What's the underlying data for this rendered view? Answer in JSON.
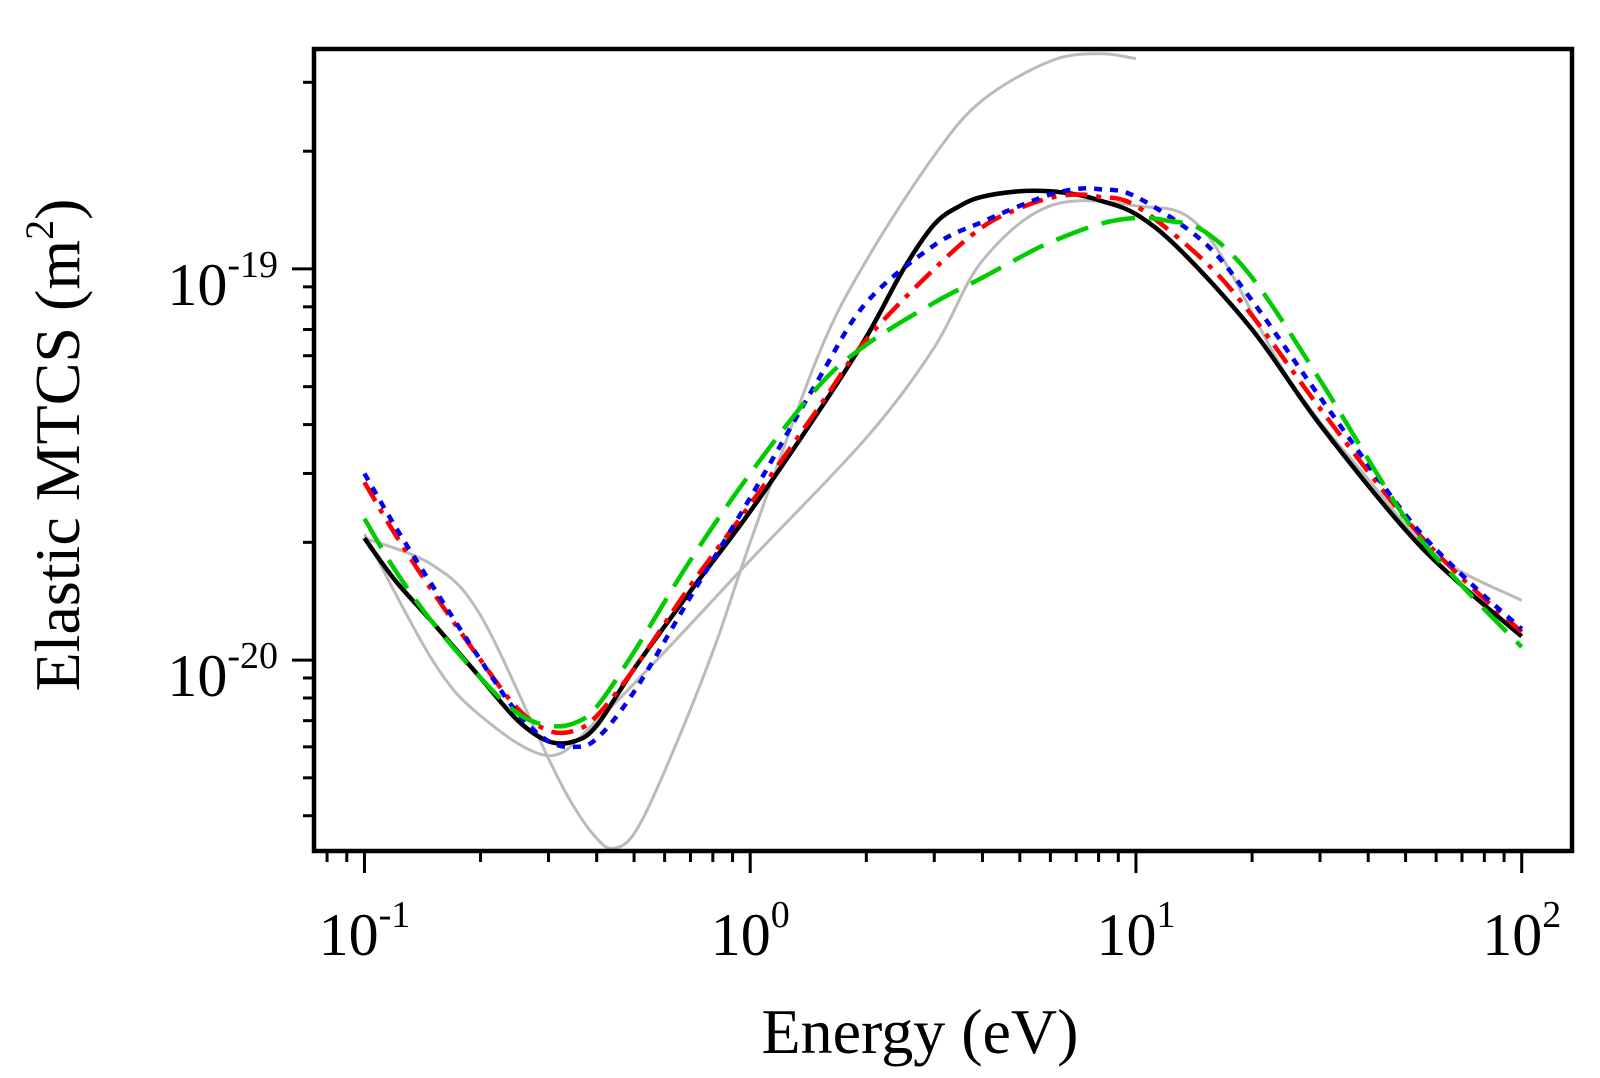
{
  "chart_data": {
    "type": "line",
    "title": "",
    "xlabel": "Energy (eV)",
    "ylabel_main": "Elastic MTCS (m",
    "ylabel_sup": "2",
    "ylabel_close": ")",
    "xscale": "log",
    "yscale": "log",
    "xlim": [
      0.074,
      135
    ],
    "ylim": [
      3.25e-21,
      3.65e-19
    ],
    "grid": false,
    "legend": "none",
    "x_ticks": [
      {
        "value": 0.1,
        "base": "10",
        "exp": "-1"
      },
      {
        "value": 1,
        "base": "10",
        "exp": "0"
      },
      {
        "value": 10,
        "base": "10",
        "exp": "1"
      },
      {
        "value": 100,
        "base": "10",
        "exp": "2"
      }
    ],
    "y_ticks": [
      {
        "value": 1e-20,
        "base": "10",
        "exp": "-20"
      },
      {
        "value": 1e-19,
        "base": "10",
        "exp": "-19"
      }
    ],
    "series": [
      {
        "color": "#bbbbbb",
        "dash": "solid",
        "width": 3,
        "x": [
          0.1,
          0.15,
          0.2,
          0.3,
          0.35,
          0.4,
          0.44,
          0.5,
          0.6,
          0.8,
          1,
          1.5,
          2,
          3,
          4,
          6,
          8,
          10
        ],
        "y": [
          2.05e-20,
          1.75e-20,
          1.3e-20,
          5.6e-21,
          4.2e-21,
          3.5e-21,
          3.3e-21,
          3.6e-21,
          5.2e-21,
          1.05e-20,
          2e-20,
          6e-20,
          1.05e-19,
          1.95e-19,
          2.7e-19,
          3.4e-19,
          3.55e-19,
          3.45e-19
        ]
      },
      {
        "color": "#bbbbbb",
        "dash": "solid",
        "width": 3,
        "x": [
          0.1,
          0.15,
          0.2,
          0.3,
          0.4,
          0.6,
          1,
          2,
          3,
          4,
          6,
          10,
          15,
          25,
          40,
          60,
          100
        ],
        "y": [
          2.1e-20,
          1e-20,
          7.2e-21,
          5.7e-21,
          7e-21,
          1.05e-20,
          1.8e-20,
          3.7e-20,
          6.3e-20,
          1.05e-19,
          1.45e-19,
          1.45e-19,
          1.25e-19,
          5.2e-20,
          2.9e-20,
          1.85e-20,
          1.42e-20
        ]
      },
      {
        "color": "#000000",
        "dash": "solid",
        "width": 4.5,
        "x": [
          0.1,
          0.12,
          0.15,
          0.2,
          0.25,
          0.3,
          0.35,
          0.4,
          0.5,
          0.7,
          1,
          1.5,
          2,
          2.5,
          3,
          3.5,
          4,
          5,
          6,
          7,
          8,
          10,
          13,
          20,
          30,
          50,
          70,
          100
        ],
        "y": [
          2.05e-20,
          1.6e-20,
          1.25e-20,
          9e-21,
          7e-21,
          6.2e-21,
          6.2e-21,
          6.8e-21,
          9.5e-21,
          1.5e-20,
          2.4e-20,
          4.3e-20,
          6.7e-20,
          1e-19,
          1.3e-19,
          1.45e-19,
          1.53e-19,
          1.58e-19,
          1.58e-19,
          1.55e-19,
          1.5e-19,
          1.38e-19,
          1.12e-19,
          7e-20,
          4e-20,
          2.15e-20,
          1.55e-20,
          1.15e-20
        ]
      },
      {
        "color": "#ff0000",
        "dash": "dashdot",
        "width": 4.5,
        "x": [
          0.1,
          0.12,
          0.15,
          0.2,
          0.25,
          0.3,
          0.35,
          0.4,
          0.5,
          0.7,
          1,
          1.5,
          2,
          3,
          4,
          5,
          6,
          7,
          8,
          10,
          15,
          20,
          30,
          50,
          70,
          100
        ],
        "y": [
          2.85e-20,
          2.1e-20,
          1.5e-20,
          1e-20,
          7.5e-21,
          6.6e-21,
          6.6e-21,
          7.2e-21,
          9.5e-21,
          1.55e-20,
          2.5e-20,
          4.4e-20,
          6.6e-20,
          1e-19,
          1.28e-19,
          1.43e-19,
          1.52e-19,
          1.55e-19,
          1.53e-19,
          1.45e-19,
          1.05e-19,
          7.6e-20,
          4.4e-20,
          2.3e-20,
          1.62e-20,
          1.18e-20
        ]
      },
      {
        "color": "#0000ee",
        "dash": "dotted",
        "width": 4.5,
        "x": [
          0.1,
          0.12,
          0.15,
          0.2,
          0.25,
          0.3,
          0.35,
          0.4,
          0.5,
          0.7,
          1,
          1.5,
          2,
          3,
          4,
          5,
          6,
          7,
          8,
          10,
          15,
          20,
          30,
          50,
          70,
          100
        ],
        "y": [
          3e-20,
          2.2e-20,
          1.55e-20,
          1e-20,
          7.3e-21,
          6.2e-21,
          6e-21,
          6.3e-21,
          8.3e-21,
          1.45e-20,
          2.6e-20,
          5.2e-20,
          8.2e-20,
          1.15e-19,
          1.32e-19,
          1.45e-19,
          1.55e-19,
          1.6e-19,
          1.6e-19,
          1.53e-19,
          1.17e-19,
          8.3e-20,
          4.7e-20,
          2.35e-20,
          1.65e-20,
          1.2e-20
        ]
      },
      {
        "color": "#00cc00",
        "dash": "dashed",
        "width": 4.5,
        "x": [
          0.1,
          0.12,
          0.15,
          0.2,
          0.25,
          0.3,
          0.35,
          0.4,
          0.5,
          0.7,
          1,
          1.5,
          2,
          3,
          4,
          5,
          6,
          8,
          10,
          12,
          15,
          20,
          30,
          50,
          70,
          100
        ],
        "y": [
          2.3e-20,
          1.7e-20,
          1.25e-20,
          9e-21,
          7.3e-21,
          6.8e-21,
          6.9e-21,
          7.6e-21,
          1.05e-20,
          1.8e-20,
          3e-20,
          5e-20,
          6.4e-20,
          8.2e-20,
          9.5e-20,
          1.07e-19,
          1.17e-19,
          1.3e-19,
          1.35e-19,
          1.33e-19,
          1.25e-19,
          9.5e-20,
          5.2e-20,
          2.3e-20,
          1.55e-20,
          1.08e-20
        ]
      }
    ]
  }
}
